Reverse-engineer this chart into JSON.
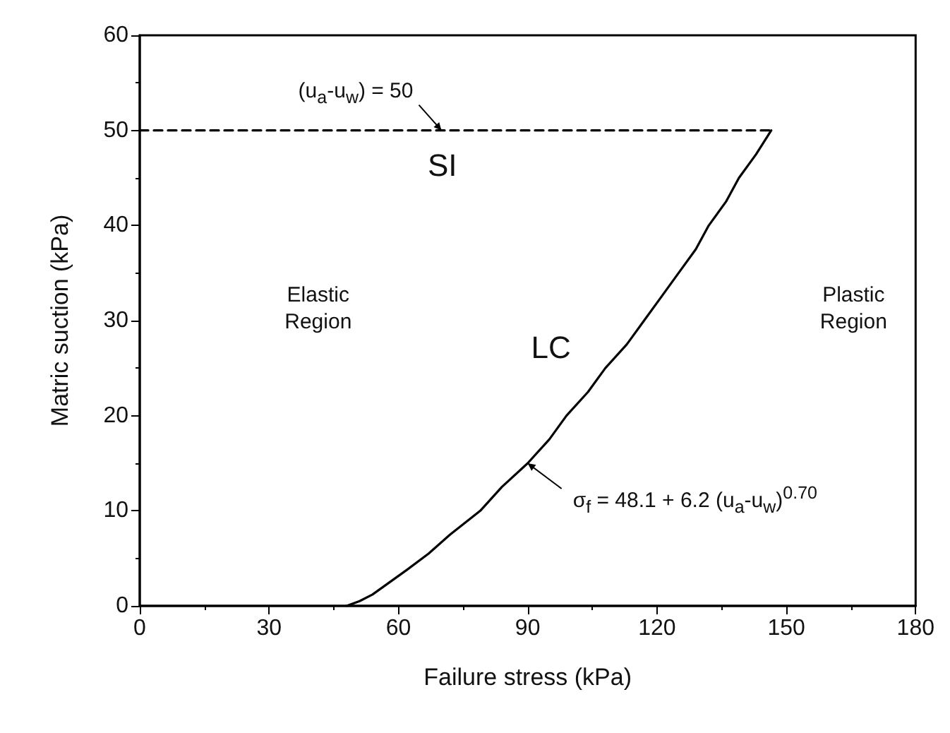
{
  "chart_data": {
    "type": "line",
    "xlabel": "Failure stress (kPa)",
    "ylabel": "Matric suction (kPa)",
    "xlim": [
      0,
      180
    ],
    "xticks": [
      0,
      30,
      60,
      90,
      120,
      150,
      180
    ],
    "ylim": [
      0,
      60
    ],
    "yticks": [
      0,
      10,
      20,
      30,
      40,
      50,
      60
    ],
    "grid": false,
    "marker": "none",
    "series": [
      {
        "color": "#000000",
        "line_style": "solid",
        "x": [
          48,
          51,
          54,
          58,
          62,
          67,
          72,
          79,
          84,
          90,
          95,
          99,
          104,
          108,
          113,
          117,
          121,
          125,
          129,
          132,
          136,
          139,
          143,
          146.5
        ],
        "values": [
          0,
          0.5,
          1.2,
          2.5,
          3.8,
          5.5,
          7.5,
          10,
          12.5,
          15,
          17.5,
          20,
          22.5,
          25,
          27.5,
          30,
          32.5,
          35,
          37.5,
          40,
          42.5,
          45,
          47.5,
          50
        ]
      },
      {
        "color": "#000000",
        "line_style": "dashed",
        "x": [
          0,
          146.5
        ],
        "values": [
          50,
          50
        ]
      }
    ],
    "annotations": [
      {
        "text": "(u$_{a}$-u$_{w}$) = 50",
        "x": 70,
        "y": 50
      },
      "SI",
      "Elastic\nRegion",
      "LC",
      "Plastic\nRegion",
      {
        "text": "σ$_{f}$ = 48.1 + 6.2 (u$_{a}$-u$_{w}$)$^{0.70}$",
        "x": 90,
        "y": 15
      }
    ]
  }
}
